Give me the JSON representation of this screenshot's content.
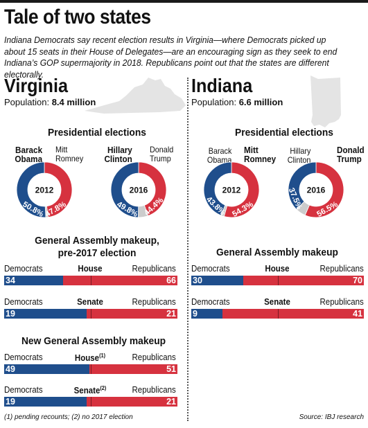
{
  "title": "Tale of two states",
  "intro": "Indiana Democrats say recent election results in Virginia—where Democrats picked up about 15 seats in their House of Delegates—are an encouraging sign as they seek to end Indiana’s GOP supermajority in 2018. Republicans point out that the states are different electorally.",
  "colors": {
    "democrat": "#1f4e8c",
    "republican": "#d6323f",
    "other": "#cccccc"
  },
  "virginia": {
    "name": "Virginia",
    "population_label": "Population:",
    "population_value": "8.4 million",
    "presidential_heading": "Presidential elections",
    "assembly_heading_line1": "General Assembly makeup,",
    "assembly_heading_line2": "pre-2017 election",
    "new_assembly_heading": "New General Assembly makeup"
  },
  "indiana": {
    "name": "Indiana",
    "population_label": "Population:",
    "population_value": "6.6 million",
    "presidential_heading": "Presidential elections",
    "assembly_heading": "General Assembly makeup"
  },
  "labels": {
    "democrats": "Democrats",
    "republicans": "Republicans",
    "house": "House",
    "senate": "Senate",
    "house_note": "(1)",
    "senate_note": "(2)"
  },
  "footnote": "(1) pending recounts; (2) no 2017 election",
  "source": "Source: IBJ research",
  "chart_data": [
    {
      "type": "pie",
      "state": "Virginia",
      "year": "2012",
      "candidates": [
        {
          "first": "Barack",
          "last": "Obama",
          "party": "democrat",
          "value": 50.8,
          "label": "50.8%",
          "winner": true
        },
        {
          "first": "Mitt",
          "last": "Romney",
          "party": "republican",
          "value": 47.8,
          "label": "47.8%",
          "winner": false
        }
      ]
    },
    {
      "type": "pie",
      "state": "Virginia",
      "year": "2016",
      "candidates": [
        {
          "first": "Hillary",
          "last": "Clinton",
          "party": "democrat",
          "value": 49.8,
          "label": "49.8%",
          "winner": true
        },
        {
          "first": "Donald",
          "last": "Trump",
          "party": "republican",
          "value": 44.4,
          "label": "44.4%",
          "winner": false
        }
      ]
    },
    {
      "type": "pie",
      "state": "Indiana",
      "year": "2012",
      "candidates": [
        {
          "first": "Barack",
          "last": "Obama",
          "party": "democrat",
          "value": 43.8,
          "label": "43.8%",
          "winner": false
        },
        {
          "first": "Mitt",
          "last": "Romney",
          "party": "republican",
          "value": 54.3,
          "label": "54.3%",
          "winner": true
        }
      ]
    },
    {
      "type": "pie",
      "state": "Indiana",
      "year": "2016",
      "candidates": [
        {
          "first": "Hillary",
          "last": "Clinton",
          "party": "democrat",
          "value": 37.5,
          "label": "37.5%",
          "winner": false
        },
        {
          "first": "Donald",
          "last": "Trump",
          "party": "republican",
          "value": 56.5,
          "label": "56.5%",
          "winner": true
        }
      ]
    },
    {
      "type": "bar",
      "state": "Virginia",
      "group": "pre-2017",
      "chambers": [
        {
          "chamber": "House",
          "democrats": 34,
          "republicans": 66
        },
        {
          "chamber": "Senate",
          "democrats": 19,
          "republicans": 21
        }
      ]
    },
    {
      "type": "bar",
      "state": "Virginia",
      "group": "new",
      "chambers": [
        {
          "chamber": "House",
          "note": "(1)",
          "democrats": 49,
          "republicans": 51
        },
        {
          "chamber": "Senate",
          "note": "(2)",
          "democrats": 19,
          "republicans": 21
        }
      ]
    },
    {
      "type": "bar",
      "state": "Indiana",
      "group": "current",
      "chambers": [
        {
          "chamber": "House",
          "democrats": 30,
          "republicans": 70
        },
        {
          "chamber": "Senate",
          "democrats": 9,
          "republicans": 41
        }
      ]
    }
  ]
}
